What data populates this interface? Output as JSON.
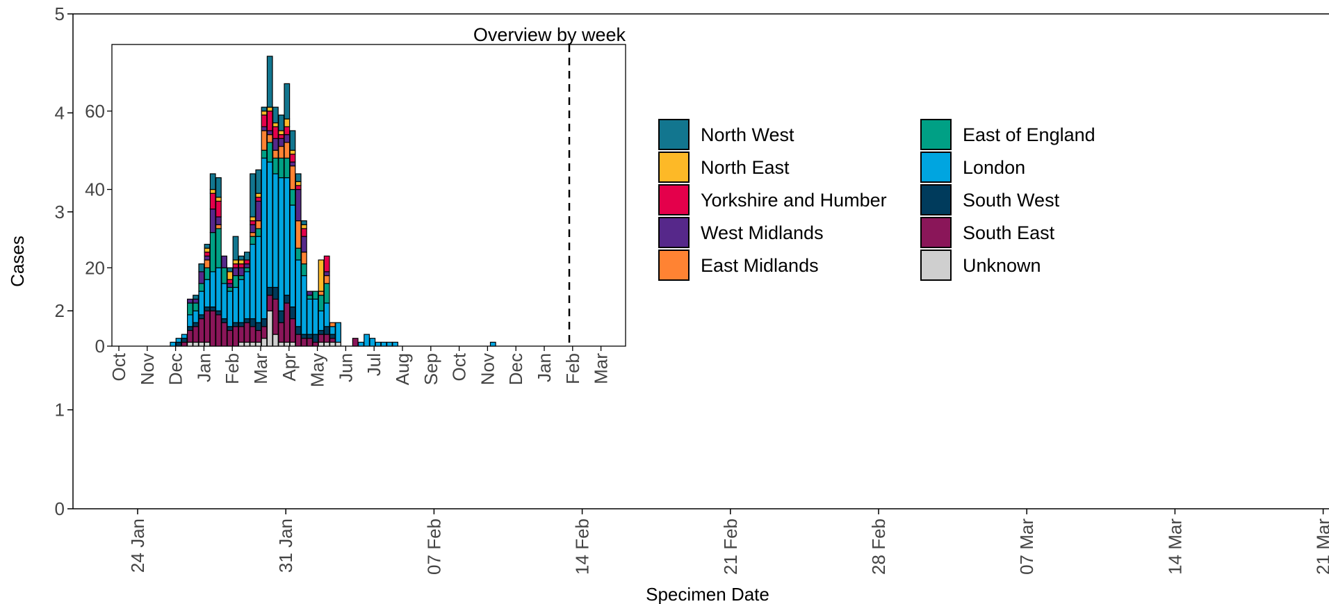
{
  "chart_data": [
    {
      "type": "bar",
      "title": "",
      "xlabel": "Specimen Date",
      "ylabel": "Cases",
      "ylim": [
        0,
        5
      ],
      "y_ticks": [
        0,
        1,
        2,
        3,
        4,
        5
      ],
      "x_range_days": [
        "2020-01-21",
        "2020-03-21"
      ],
      "x_ticks": [
        "24 Jan",
        "31 Jan",
        "07 Feb",
        "14 Feb",
        "21 Feb",
        "28 Feb",
        "07 Mar",
        "14 Mar",
        "21 Mar"
      ],
      "series": [],
      "grid": false,
      "legend_position": "right",
      "legend": [
        {
          "name": "North West",
          "color": "#12768F"
        },
        {
          "name": "North East",
          "color": "#FDB927"
        },
        {
          "name": "Yorkshire and Humber",
          "color": "#E4004B"
        },
        {
          "name": "West Midlands",
          "color": "#56288A"
        },
        {
          "name": "East Midlands",
          "color": "#FF8333"
        },
        {
          "name": "East of England",
          "color": "#00A085"
        },
        {
          "name": "London",
          "color": "#00A5E0"
        },
        {
          "name": "South West",
          "color": "#003B5C"
        },
        {
          "name": "South East",
          "color": "#8A1659"
        },
        {
          "name": "Unknown",
          "color": "#CFCFCF"
        }
      ]
    },
    {
      "type": "bar",
      "stacked": true,
      "title": "Overview by week",
      "xlabel": "",
      "ylabel": "",
      "ylim": [
        0,
        77
      ],
      "y_ticks": [
        0,
        20,
        40,
        60
      ],
      "x_ticks": [
        "Oct",
        "Nov",
        "Dec",
        "Jan",
        "Feb",
        "Mar",
        "Apr",
        "May",
        "Jun",
        "Jul",
        "Aug",
        "Sep",
        "Oct",
        "Nov",
        "Dec",
        "Jan",
        "Feb",
        "Mar"
      ],
      "marker_line_at": "Jan (2021)",
      "series_order": [
        "Unknown",
        "South East",
        "South West",
        "London",
        "East of England",
        "East Midlands",
        "West Midlands",
        "Yorkshire and Humber",
        "North East",
        "North West"
      ],
      "weeks": [
        {
          "Unknown": 0,
          "South East": 0,
          "South West": 0,
          "London": 1,
          "East of England": 0,
          "East Midlands": 0,
          "West Midlands": 0,
          "Yorkshire and Humber": 0,
          "North East": 0,
          "North West": 0
        },
        {
          "Unknown": 0,
          "South East": 0,
          "South West": 1,
          "London": 1,
          "East of England": 0,
          "East Midlands": 0,
          "West Midlands": 0,
          "Yorkshire and Humber": 0,
          "North East": 0,
          "North West": 0
        },
        {
          "Unknown": 0,
          "South East": 1,
          "South West": 1,
          "London": 1,
          "East of England": 0,
          "East Midlands": 0,
          "West Midlands": 0,
          "Yorkshire and Humber": 0,
          "North East": 0,
          "North West": 0
        },
        {
          "Unknown": 1,
          "South East": 3,
          "South West": 1,
          "London": 3,
          "East of England": 3,
          "East Midlands": 0,
          "West Midlands": 1,
          "Yorkshire and Humber": 0,
          "North East": 0,
          "North West": 0
        },
        {
          "Unknown": 1,
          "South East": 4,
          "South West": 1,
          "London": 3,
          "East of England": 2,
          "East Midlands": 0,
          "West Midlands": 1,
          "Yorkshire and Humber": 0,
          "North East": 0,
          "North West": 1
        },
        {
          "Unknown": 1,
          "South East": 6,
          "South West": 1,
          "London": 6,
          "East of England": 2,
          "East Midlands": 0,
          "West Midlands": 3,
          "Yorkshire and Humber": 0,
          "North East": 0,
          "North West": 2
        },
        {
          "Unknown": 1,
          "South East": 8,
          "South West": 1,
          "London": 7,
          "East of England": 3,
          "East Midlands": 2,
          "West Midlands": 1,
          "Yorkshire and Humber": 1,
          "North East": 1,
          "North West": 1
        },
        {
          "Unknown": 0,
          "South East": 9,
          "South West": 1,
          "London": 9,
          "East of England": 10,
          "East Midlands": 0,
          "West Midlands": 6,
          "Yorkshire and Humber": 4,
          "North East": 1,
          "North West": 4
        },
        {
          "Unknown": 0,
          "South East": 8,
          "South West": 1,
          "London": 11,
          "East of England": 10,
          "East Midlands": 1,
          "West Midlands": 2,
          "Yorkshire and Humber": 4,
          "North East": 1,
          "North West": 5
        },
        {
          "Unknown": 0,
          "South East": 6,
          "South West": 1,
          "London": 9,
          "East of England": 4,
          "East Midlands": 0,
          "West Midlands": 3,
          "Yorkshire and Humber": 0,
          "North East": 0,
          "North West": 0
        },
        {
          "Unknown": 0,
          "South East": 4,
          "South West": 1,
          "London": 9,
          "East of England": 1,
          "East Midlands": 0,
          "West Midlands": 1,
          "Yorkshire and Humber": 1,
          "North East": 2,
          "North West": 1
        },
        {
          "Unknown": 0,
          "South East": 5,
          "South West": 1,
          "London": 9,
          "East of England": 3,
          "East Midlands": 0,
          "West Midlands": 2,
          "Yorkshire and Humber": 1,
          "North East": 1,
          "North West": 6
        },
        {
          "Unknown": 1,
          "South East": 4,
          "South West": 1,
          "London": 11,
          "East of England": 1,
          "East Midlands": 0,
          "West Midlands": 2,
          "Yorkshire and Humber": 1,
          "North East": 1,
          "North West": 1
        },
        {
          "Unknown": 1,
          "South East": 5,
          "South West": 1,
          "London": 12,
          "East of England": 1,
          "East Midlands": 0,
          "West Midlands": 1,
          "Yorkshire and Humber": 1,
          "North East": 0,
          "North West": 2
        },
        {
          "Unknown": 1,
          "South East": 4,
          "South West": 2,
          "London": 19,
          "East of England": 2,
          "East Midlands": 1,
          "West Midlands": 2,
          "Yorkshire and Humber": 1,
          "North East": 1,
          "North West": 11
        },
        {
          "Unknown": 1,
          "South East": 3,
          "South West": 2,
          "London": 22,
          "East of England": 2,
          "East Midlands": 2,
          "West Midlands": 5,
          "Yorkshire and Humber": 1,
          "North East": 1,
          "North West": 6
        },
        {
          "Unknown": 2,
          "South East": 3,
          "South West": 2,
          "London": 41,
          "East of England": 2,
          "East Midlands": 5,
          "West Midlands": 1,
          "Yorkshire and Humber": 3,
          "North East": 1,
          "North West": 1
        },
        {
          "Unknown": 9,
          "South East": 4,
          "South West": 2,
          "London": 32,
          "East of England": 5,
          "East Midlands": 2,
          "West Midlands": 1,
          "Yorkshire and Humber": 5,
          "North East": 1,
          "North West": 13
        },
        {
          "Unknown": 3,
          "South East": 9,
          "South West": 3,
          "London": 29,
          "East of England": 4,
          "East Midlands": 2,
          "West Midlands": 3,
          "Yorkshire and Humber": 3,
          "North East": 1,
          "North West": 4
        },
        {
          "Unknown": 1,
          "South East": 5,
          "South West": 3,
          "London": 34,
          "East of England": 5,
          "East Midlands": 3,
          "West Midlands": 2,
          "Yorkshire and Humber": 1,
          "North East": 1,
          "North West": 4
        },
        {
          "Unknown": 1,
          "South East": 10,
          "South West": 2,
          "London": 30,
          "East of England": 5,
          "East Midlands": 4,
          "West Midlands": 2,
          "Yorkshire and Humber": 2,
          "North East": 2,
          "North West": 9
        },
        {
          "Unknown": 1,
          "South East": 6,
          "South West": 3,
          "London": 26,
          "East of England": 4,
          "East Midlands": 6,
          "West Midlands": 1,
          "Yorkshire and Humber": 2,
          "North East": 1,
          "North West": 5
        },
        {
          "Unknown": 0,
          "South East": 3,
          "South West": 2,
          "London": 17,
          "East of England": 3,
          "East Midlands": 7,
          "West Midlands": 8,
          "Yorkshire and Humber": 1,
          "North East": 1,
          "North West": 2
        },
        {
          "Unknown": 0,
          "South East": 2,
          "South West": 1,
          "London": 15,
          "East of England": 3,
          "East Midlands": 3,
          "West Midlands": 4,
          "Yorkshire and Humber": 2,
          "North East": 1,
          "North West": 1
        },
        {
          "Unknown": 0,
          "South East": 2,
          "South West": 1,
          "London": 9,
          "East of England": 1,
          "East Midlands": 0,
          "West Midlands": 1,
          "Yorkshire and Humber": 0,
          "North East": 0,
          "North West": 0
        },
        {
          "Unknown": 0,
          "South East": 1,
          "South West": 2,
          "London": 9,
          "East of England": 2,
          "East Midlands": 0,
          "West Midlands": 0,
          "Yorkshire and Humber": 0,
          "North East": 0,
          "North West": 0
        },
        {
          "Unknown": 1,
          "South East": 2,
          "South West": 1,
          "London": 5,
          "East of England": 4,
          "East Midlands": 1,
          "West Midlands": 0,
          "Yorkshire and Humber": 0,
          "North East": 8,
          "North West": 0
        },
        {
          "Unknown": 1,
          "South East": 2,
          "South West": 2,
          "London": 6,
          "East of England": 5,
          "East Midlands": 2,
          "West Midlands": 1,
          "Yorkshire and Humber": 4,
          "North East": 0,
          "North West": 0
        },
        {
          "Unknown": 1,
          "South East": 1,
          "South West": 1,
          "London": 2,
          "East of England": 0,
          "East Midlands": 1,
          "West Midlands": 0,
          "Yorkshire and Humber": 0,
          "North East": 0,
          "North West": 0
        },
        {
          "Unknown": 1,
          "South East": 0,
          "South West": 0,
          "London": 5,
          "East of England": 0,
          "East Midlands": 0,
          "West Midlands": 0,
          "Yorkshire and Humber": 0,
          "North East": 0,
          "North West": 0
        },
        {
          "Unknown": 0,
          "South East": 0,
          "South West": 0,
          "London": 0,
          "East of England": 0,
          "East Midlands": 0,
          "West Midlands": 0,
          "Yorkshire and Humber": 0,
          "North East": 0,
          "North West": 0
        },
        {
          "Unknown": 0,
          "South East": 0,
          "South West": 0,
          "London": 0,
          "East of England": 0,
          "East Midlands": 0,
          "West Midlands": 0,
          "Yorkshire and Humber": 0,
          "North East": 0,
          "North West": 0
        },
        {
          "Unknown": 0,
          "South East": 2,
          "South West": 0,
          "London": 0,
          "East of England": 0,
          "East Midlands": 0,
          "West Midlands": 0,
          "Yorkshire and Humber": 0,
          "North East": 0,
          "North West": 0
        },
        {
          "Unknown": 0,
          "South East": 0,
          "South West": 0,
          "London": 1,
          "East of England": 0,
          "East Midlands": 0,
          "West Midlands": 0,
          "Yorkshire and Humber": 0,
          "North East": 0,
          "North West": 0
        },
        {
          "Unknown": 0,
          "South East": 0,
          "South West": 0,
          "London": 3,
          "East of England": 0,
          "East Midlands": 0,
          "West Midlands": 0,
          "Yorkshire and Humber": 0,
          "North East": 0,
          "North West": 0
        },
        {
          "Unknown": 0,
          "South East": 0,
          "South West": 0,
          "London": 2,
          "East of England": 0,
          "East Midlands": 0,
          "West Midlands": 0,
          "Yorkshire and Humber": 0,
          "North East": 0,
          "North West": 0
        },
        {
          "Unknown": 0,
          "South East": 0,
          "South West": 0,
          "London": 1,
          "East of England": 0,
          "East Midlands": 0,
          "West Midlands": 0,
          "Yorkshire and Humber": 0,
          "North East": 0,
          "North West": 0
        },
        {
          "Unknown": 0,
          "South East": 0,
          "South West": 0,
          "London": 1,
          "East of England": 0,
          "East Midlands": 0,
          "West Midlands": 0,
          "Yorkshire and Humber": 0,
          "North East": 0,
          "North West": 0
        },
        {
          "Unknown": 0,
          "South East": 0,
          "South West": 0,
          "London": 1,
          "East of England": 0,
          "East Midlands": 0,
          "West Midlands": 0,
          "Yorkshire and Humber": 0,
          "North East": 0,
          "North West": 0
        },
        {
          "Unknown": 0,
          "South East": 0,
          "South West": 0,
          "London": 1,
          "East of England": 0,
          "East Midlands": 0,
          "West Midlands": 0,
          "Yorkshire and Humber": 0,
          "North East": 0,
          "North West": 0
        }
      ],
      "late_weeks": [
        {
          "month_index": 13.1,
          "Unknown": 0,
          "South East": 0,
          "South West": 0,
          "London": 1,
          "East of England": 0,
          "East Midlands": 0,
          "West Midlands": 0,
          "Yorkshire and Humber": 0,
          "North East": 0,
          "North West": 0
        }
      ]
    }
  ]
}
